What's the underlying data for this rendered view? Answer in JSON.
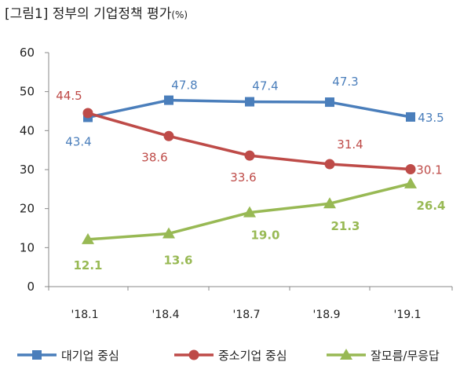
{
  "title": {
    "main": "[그림1] 정부의 기업정책 평가",
    "unit": "(%)"
  },
  "chart_data": {
    "type": "line",
    "title": "[그림1] 정부의 기업정책 평가 (%)",
    "categories": [
      "'18.1",
      "'18.4",
      "'18.7",
      "'18.9",
      "'19.1"
    ],
    "ylim": [
      0,
      60
    ],
    "yticks": [
      0,
      10,
      20,
      30,
      40,
      50,
      60
    ],
    "grid": false,
    "legend_position": "bottom",
    "series": [
      {
        "name": "대기업 중심",
        "values": [
          43.4,
          47.8,
          47.4,
          47.3,
          43.5
        ],
        "labels": [
          "43.4",
          "47.8",
          "47.4",
          "47.3",
          "43.5"
        ],
        "color": "#4a7ebb",
        "marker": "square"
      },
      {
        "name": "중소기업 중심",
        "values": [
          44.5,
          38.6,
          33.6,
          31.4,
          30.1
        ],
        "labels": [
          "44.5",
          "38.6",
          "33.6",
          "31.4",
          "30.1"
        ],
        "color": "#be4b48",
        "marker": "circle"
      },
      {
        "name": "잘모름/무응답",
        "values": [
          12.1,
          13.6,
          19.0,
          21.3,
          26.4
        ],
        "labels": [
          "12.1",
          "13.6",
          "19.0",
          "21.3",
          "26.4"
        ],
        "color": "#98b954",
        "marker": "triangle"
      }
    ]
  }
}
